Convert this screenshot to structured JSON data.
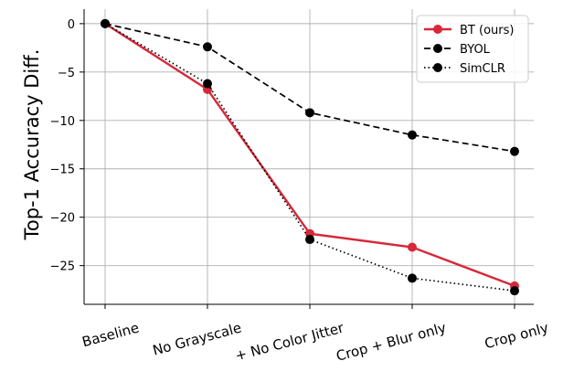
{
  "chart_data": {
    "type": "line",
    "title": "",
    "xlabel": "",
    "ylabel": "Top-1 Accuracy Diff.",
    "categories": [
      "Baseline",
      "No Grayscale",
      "+ No Color Jitter",
      "Crop + Blur only",
      "Crop only"
    ],
    "ylim": [
      -29,
      1.5
    ],
    "yticks": [
      0,
      -5,
      -10,
      -15,
      -20,
      -25
    ],
    "grid": true,
    "legend_position": "top-right",
    "series": [
      {
        "name": "BT (ours)",
        "values": [
          0,
          -6.8,
          -21.7,
          -23.1,
          -27.1
        ],
        "color": "#d62839",
        "line_style": "solid"
      },
      {
        "name": "BYOL",
        "values": [
          0,
          -2.4,
          -9.2,
          -11.5,
          -13.2
        ],
        "color": "#000000",
        "line_style": "dashed"
      },
      {
        "name": "SimCLR",
        "values": [
          0,
          -6.2,
          -22.3,
          -26.3,
          -27.6
        ],
        "color": "#000000",
        "line_style": "dotted"
      }
    ]
  }
}
